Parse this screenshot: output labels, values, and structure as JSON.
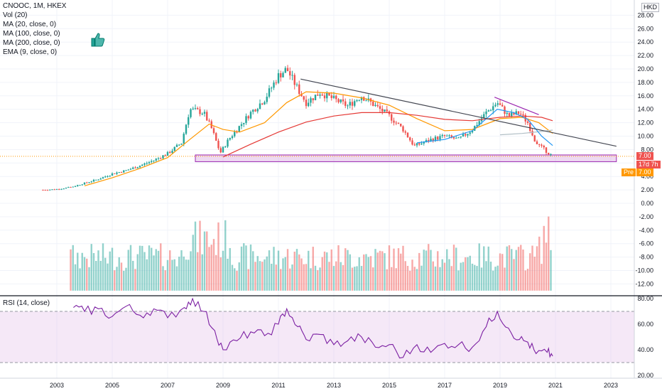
{
  "header": {
    "symbol_line": "CNOOC, 1M, HKEX",
    "indicators": [
      "Vol (20)",
      "MA (20, close, 0)",
      "MA (100, close, 0)",
      "MA (200, close, 0)",
      "EMA (9, close, 0)"
    ],
    "currency_badge": "HKD"
  },
  "rsi_panel": {
    "label": "RSI (14, close)"
  },
  "price_tags": {
    "last": "7.00",
    "countdown": "17d 7h",
    "pre_label": "Pre",
    "pre_value": "7.00"
  },
  "colors": {
    "up": "#26a69a",
    "down": "#ef5350",
    "rsi_line": "#7b1fa2",
    "support_box": "#ce93d8",
    "ma_orange": "#ff9800",
    "ma_red": "#e53935",
    "ma_blue": "#2196f3"
  },
  "chart_data": [
    {
      "type": "candlestick",
      "title": "CNOOC, 1M, HKEX",
      "x_ticks": [
        "2003",
        "2005",
        "2007",
        "2009",
        "2011",
        "2013",
        "2015",
        "2017",
        "2019",
        "2021",
        "2023"
      ],
      "y_ticks": [
        "28.00",
        "26.00",
        "24.00",
        "22.00",
        "20.00",
        "18.00",
        "16.00",
        "14.00",
        "12.00",
        "10.00",
        "8.00",
        "6.00",
        "4.00",
        "2.00",
        "0.00",
        "-2.00",
        "-4.00",
        "-6.00",
        "-8.00",
        "-10.00",
        "-12.00"
      ],
      "ylim": [
        -13,
        30
      ],
      "series": [
        {
          "name": "close_path",
          "x": [
            2002.5,
            2003.0,
            2003.5,
            2004.0,
            2004.5,
            2005.0,
            2005.5,
            2006.0,
            2006.5,
            2007.0,
            2007.5,
            2007.8,
            2008.0,
            2008.3,
            2008.6,
            2008.9,
            2009.2,
            2009.6,
            2010.0,
            2010.5,
            2011.0,
            2011.3,
            2011.7,
            2012.0,
            2012.5,
            2013.0,
            2013.5,
            2014.0,
            2014.5,
            2015.0,
            2015.5,
            2015.9,
            2016.5,
            2017.0,
            2017.5,
            2018.0,
            2018.5,
            2018.9,
            2019.3,
            2019.7,
            2020.0,
            2020.3,
            2020.6,
            2020.9
          ],
          "values": [
            2.0,
            2.1,
            2.4,
            3.0,
            3.6,
            4.4,
            4.9,
            5.6,
            6.4,
            7.4,
            9.0,
            14.0,
            13.8,
            13.5,
            11.0,
            7.5,
            9.5,
            11.5,
            13.5,
            15.5,
            19.0,
            20.0,
            17.0,
            15.0,
            16.5,
            15.5,
            14.5,
            16.0,
            14.5,
            13.0,
            11.0,
            8.5,
            9.5,
            10.0,
            9.5,
            11.0,
            13.5,
            15.0,
            13.0,
            13.5,
            12.0,
            9.0,
            8.0,
            7.0
          ]
        },
        {
          "name": "MA (20, close, 0)",
          "x": [
            2004.0,
            2005.0,
            2006.0,
            2007.0,
            2007.8,
            2008.5,
            2009.0,
            2009.6,
            2010.5,
            2011.3,
            2012.0,
            2013.0,
            2014.0,
            2015.0,
            2016.0,
            2017.0,
            2018.0,
            2019.0,
            2019.8,
            2020.4,
            2020.9
          ],
          "values": [
            2.6,
            3.8,
            5.2,
            6.8,
            9.5,
            11.8,
            11.0,
            10.6,
            12.0,
            15.0,
            16.6,
            16.4,
            15.7,
            14.6,
            12.6,
            10.8,
            11.0,
            12.6,
            12.8,
            12.0,
            10.4
          ]
        },
        {
          "name": "MA (100, close, 0)",
          "x": [
            2009.0,
            2010.0,
            2011.0,
            2012.0,
            2013.0,
            2014.0,
            2015.0,
            2016.0,
            2017.0,
            2018.0,
            2019.0,
            2019.8,
            2020.5,
            2020.9
          ],
          "values": [
            6.9,
            8.8,
            10.6,
            12.1,
            13.0,
            13.5,
            13.5,
            13.1,
            12.5,
            12.3,
            12.8,
            13.0,
            12.8,
            12.3
          ]
        },
        {
          "name": "MA (200, close, 0)",
          "x": [
            2019.0,
            2019.8,
            2020.5,
            2020.9
          ],
          "values": [
            10.2,
            10.4,
            10.7,
            10.9
          ]
        },
        {
          "name": "EMA (9, close, 0)",
          "x": [
            2016.0,
            2017.0,
            2018.0,
            2018.9,
            2019.5,
            2020.0,
            2020.5,
            2020.9
          ],
          "values": [
            9.0,
            9.5,
            10.8,
            14.0,
            13.5,
            12.5,
            10.0,
            8.6
          ]
        }
      ],
      "trendline_points": [
        [
          2011.8,
          18.5
        ],
        [
          2023.2,
          8.5
        ]
      ],
      "secondary_trendline_points": [
        [
          2018.8,
          15.8
        ],
        [
          2020.4,
          13.2
        ]
      ],
      "support_zone": [
        6.2,
        7.2
      ],
      "volume": {
        "name": "Vol (20)",
        "min_value": -13,
        "max_value": -1.2
      }
    },
    {
      "type": "line",
      "title": "RSI (14, close)",
      "y_ticks": [
        "80.00",
        "60.00",
        "40.00",
        "20.00"
      ],
      "ylim": [
        17,
        80
      ],
      "band": [
        30,
        70
      ],
      "x": [
        2003.6,
        2004.0,
        2004.5,
        2005.0,
        2005.5,
        2006.0,
        2006.5,
        2007.0,
        2007.6,
        2007.9,
        2008.3,
        2008.7,
        2009.0,
        2009.5,
        2010.0,
        2010.5,
        2011.0,
        2011.3,
        2011.7,
        2012.0,
        2012.5,
        2013.0,
        2013.5,
        2014.0,
        2014.5,
        2015.0,
        2015.5,
        2016.0,
        2016.5,
        2017.0,
        2017.5,
        2018.0,
        2018.5,
        2018.9,
        2019.3,
        2019.7,
        2020.0,
        2020.3,
        2020.7,
        2020.9
      ],
      "values": [
        73,
        70,
        72,
        66,
        74,
        67,
        72,
        65,
        73,
        80,
        70,
        55,
        40,
        47,
        54,
        51,
        60,
        72,
        58,
        48,
        52,
        44,
        47,
        50,
        42,
        44,
        34,
        44,
        38,
        45,
        44,
        42,
        58,
        70,
        57,
        48,
        46,
        37,
        38,
        35
      ]
    }
  ]
}
